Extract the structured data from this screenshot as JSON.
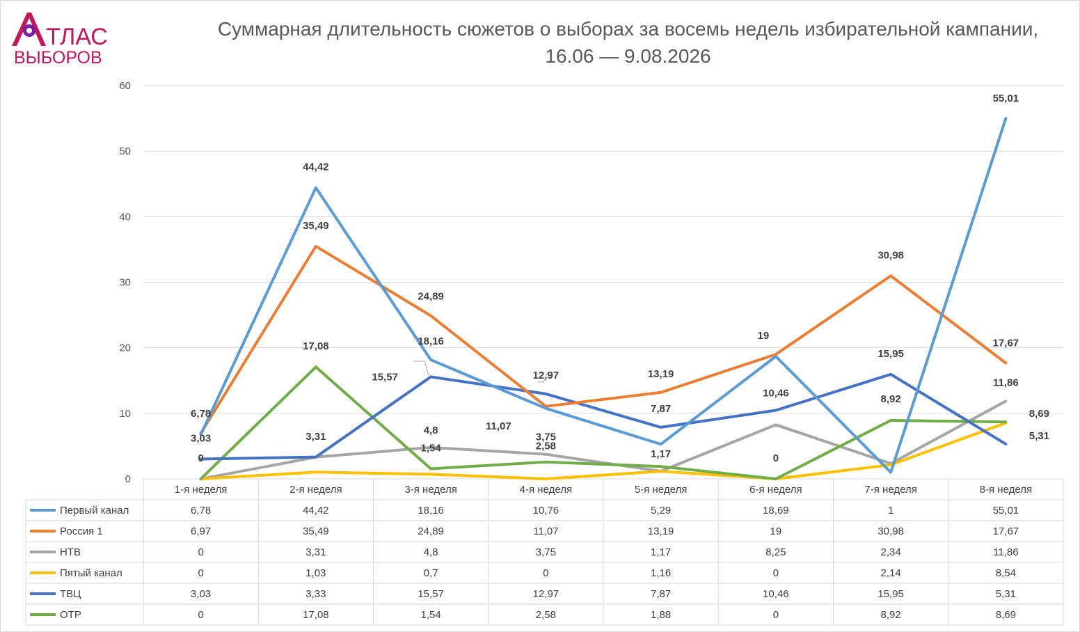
{
  "logo": {
    "line1": "ТЛАС",
    "line2": "ВЫБОРОВ"
  },
  "chart_data": {
    "type": "line",
    "title": "Суммарная длительность сюжетов о выборах за восемь недель избирательной кампании, 16.06 — 9.08.2026",
    "categories": [
      "1-я неделя",
      "2-я неделя",
      "3-я неделя",
      "4-я неделя",
      "5-я неделя",
      "6-я неделя",
      "7-я неделя",
      "8-я неделя"
    ],
    "ylim": [
      0,
      60
    ],
    "yticks": [
      0,
      10,
      20,
      30,
      40,
      50,
      60
    ],
    "grid": true,
    "legend": "data-table-below",
    "series": [
      {
        "name": "Первый канал",
        "color": "#5b9bd5",
        "values": [
          6.78,
          44.42,
          18.16,
          10.76,
          5.29,
          18.69,
          1,
          55.01
        ],
        "table": [
          "6,78",
          "44,42",
          "18,16",
          "10,76",
          "5,29",
          "18,69",
          "1",
          "55,01"
        ]
      },
      {
        "name": "Россия 1",
        "color": "#ed7d31",
        "values": [
          6.97,
          35.49,
          24.89,
          11.07,
          13.19,
          19,
          30.98,
          17.67
        ],
        "table": [
          "6,97",
          "35,49",
          "24,89",
          "11,07",
          "13,19",
          "19",
          "30,98",
          "17,67"
        ]
      },
      {
        "name": "НТВ",
        "color": "#a5a5a5",
        "values": [
          0,
          3.31,
          4.8,
          3.75,
          1.17,
          8.25,
          2.34,
          11.86
        ],
        "table": [
          "0",
          "3,31",
          "4,8",
          "3,75",
          "1,17",
          "8,25",
          "2,34",
          "11,86"
        ]
      },
      {
        "name": "Пятый канал",
        "color": "#ffc000",
        "values": [
          0,
          1.03,
          0.7,
          0,
          1.16,
          0,
          2.14,
          8.54
        ],
        "table": [
          "0",
          "1,03",
          "0,7",
          "0",
          "1,16",
          "0",
          "2,14",
          "8,54"
        ]
      },
      {
        "name": "ТВЦ",
        "color": "#4472c4",
        "values": [
          3.03,
          3.33,
          15.57,
          12.97,
          7.87,
          10.46,
          15.95,
          5.31
        ],
        "table": [
          "3,03",
          "3,33",
          "15,57",
          "12,97",
          "7,87",
          "10,46",
          "15,95",
          "5,31"
        ]
      },
      {
        "name": "ОТР",
        "color": "#70ad47",
        "values": [
          0,
          17.08,
          1.54,
          2.58,
          1.88,
          0,
          8.92,
          8.69
        ],
        "table": [
          "0",
          "17,08",
          "1,54",
          "2,58",
          "1,88",
          "0",
          "8,92",
          "8,69"
        ]
      }
    ],
    "data_labels": [
      {
        "text": "6,78",
        "x": 0,
        "y": 6.78
      },
      {
        "text": "3,03",
        "x": 0,
        "y": 3.03
      },
      {
        "text": "0",
        "x": 0,
        "y": 0
      },
      {
        "text": "44,42",
        "x": 1,
        "y": 44.42
      },
      {
        "text": "35,49",
        "x": 1,
        "y": 35.49
      },
      {
        "text": "17,08",
        "x": 1,
        "y": 17.08
      },
      {
        "text": "3,31",
        "x": 1,
        "y": 3.31
      },
      {
        "text": "24,89",
        "x": 2,
        "y": 24.89
      },
      {
        "text": "18,16",
        "x": 2,
        "y": 18.16
      },
      {
        "text": "15,57",
        "x": 2,
        "y": 15.57
      },
      {
        "text": "4,8",
        "x": 2,
        "y": 4.8
      },
      {
        "text": "1,54",
        "x": 2,
        "y": 1.54
      },
      {
        "text": "12,97",
        "x": 3,
        "y": 12.97
      },
      {
        "text": "11,07",
        "x": 3,
        "y": 11.07
      },
      {
        "text": "3,75",
        "x": 3,
        "y": 3.75
      },
      {
        "text": "2,58",
        "x": 3,
        "y": 2.58
      },
      {
        "text": "13,19",
        "x": 4,
        "y": 13.19
      },
      {
        "text": "7,87",
        "x": 4,
        "y": 7.87
      },
      {
        "text": "1,17",
        "x": 4,
        "y": 1.17
      },
      {
        "text": "19",
        "x": 5,
        "y": 19
      },
      {
        "text": "10,46",
        "x": 5,
        "y": 10.46
      },
      {
        "text": "0",
        "x": 5,
        "y": 0
      },
      {
        "text": "30,98",
        "x": 6,
        "y": 30.98
      },
      {
        "text": "15,95",
        "x": 6,
        "y": 15.95
      },
      {
        "text": "8,92",
        "x": 6,
        "y": 8.92
      },
      {
        "text": "55,01",
        "x": 7,
        "y": 55.01
      },
      {
        "text": "17,67",
        "x": 7,
        "y": 17.67
      },
      {
        "text": "11,86",
        "x": 7,
        "y": 11.86
      },
      {
        "text": "8,69",
        "x": 7,
        "y": 8.69
      },
      {
        "text": "5,31",
        "x": 7,
        "y": 5.31
      }
    ]
  }
}
